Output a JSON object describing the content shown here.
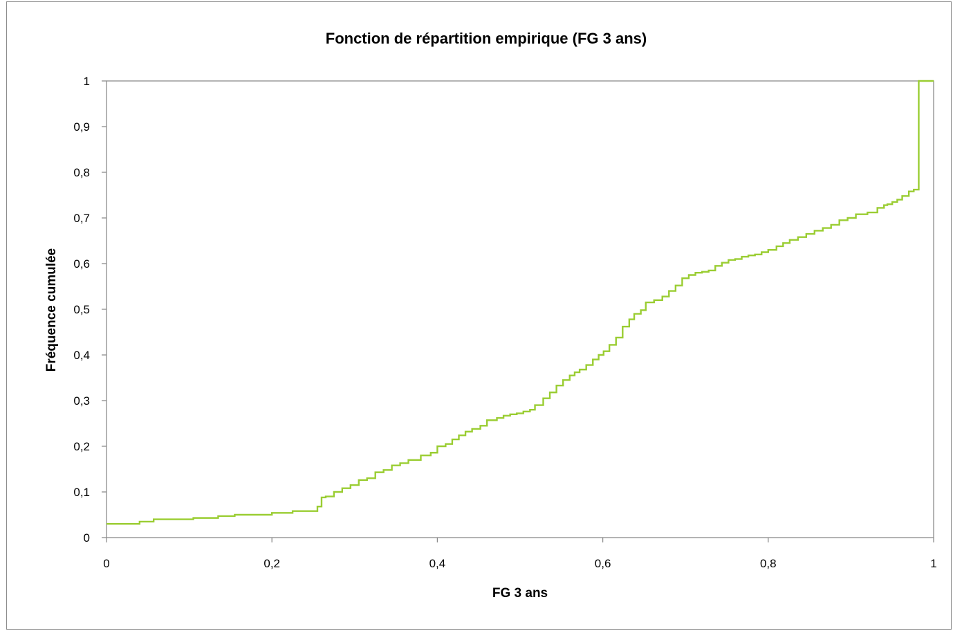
{
  "chart_data": {
    "type": "line",
    "step": true,
    "title": "Fonction de répartition empirique (FG 3 ans)",
    "xlabel": "FG 3 ans",
    "ylabel": "Fréquence cumulée",
    "xlim": [
      0,
      1
    ],
    "ylim": [
      0,
      1
    ],
    "x_ticks": [
      "0",
      "0,2",
      "0,4",
      "0,6",
      "0,8",
      "1"
    ],
    "x_tick_values": [
      0,
      0.2,
      0.4,
      0.6,
      0.8,
      1
    ],
    "y_ticks": [
      "0",
      "0,1",
      "0,2",
      "0,3",
      "0,4",
      "0,5",
      "0,6",
      "0,7",
      "0,8",
      "0,9",
      "1"
    ],
    "y_tick_values": [
      0,
      0.1,
      0.2,
      0.3,
      0.4,
      0.5,
      0.6,
      0.7,
      0.8,
      0.9,
      1
    ],
    "grid": false,
    "legend": "none",
    "line_color": "#9acd32",
    "series": [
      {
        "x": [
          0,
          0.04,
          0.057,
          0.105,
          0.135,
          0.155,
          0.2,
          0.225,
          0.255,
          0.26,
          0.265,
          0.275,
          0.285,
          0.295,
          0.305,
          0.315,
          0.325,
          0.335,
          0.345,
          0.355,
          0.365,
          0.38,
          0.392,
          0.4,
          0.41,
          0.418,
          0.426,
          0.434,
          0.442,
          0.452,
          0.46,
          0.472,
          0.48,
          0.488,
          0.496,
          0.504,
          0.512,
          0.518,
          0.528,
          0.536,
          0.544,
          0.552,
          0.56,
          0.566,
          0.572,
          0.58,
          0.588,
          0.595,
          0.601,
          0.608,
          0.616,
          0.624,
          0.632,
          0.638,
          0.646,
          0.652,
          0.662,
          0.672,
          0.68,
          0.688,
          0.696,
          0.704,
          0.712,
          0.72,
          0.728,
          0.736,
          0.744,
          0.752,
          0.76,
          0.768,
          0.776,
          0.784,
          0.792,
          0.8,
          0.81,
          0.818,
          0.826,
          0.836,
          0.846,
          0.856,
          0.866,
          0.876,
          0.886,
          0.896,
          0.906,
          0.92,
          0.932,
          0.94,
          0.944,
          0.95,
          0.956,
          0.962,
          0.97,
          0.976,
          0.982,
          0.992,
          1.0
        ],
        "y": [
          0.03,
          0.035,
          0.04,
          0.043,
          0.047,
          0.05,
          0.054,
          0.058,
          0.068,
          0.088,
          0.09,
          0.1,
          0.108,
          0.115,
          0.126,
          0.13,
          0.143,
          0.148,
          0.158,
          0.163,
          0.17,
          0.18,
          0.186,
          0.2,
          0.205,
          0.215,
          0.224,
          0.232,
          0.238,
          0.245,
          0.257,
          0.262,
          0.267,
          0.27,
          0.272,
          0.276,
          0.28,
          0.29,
          0.305,
          0.318,
          0.333,
          0.345,
          0.355,
          0.362,
          0.368,
          0.378,
          0.39,
          0.4,
          0.408,
          0.422,
          0.438,
          0.462,
          0.478,
          0.49,
          0.498,
          0.515,
          0.52,
          0.528,
          0.54,
          0.552,
          0.568,
          0.575,
          0.58,
          0.582,
          0.585,
          0.595,
          0.602,
          0.608,
          0.61,
          0.615,
          0.618,
          0.62,
          0.625,
          0.63,
          0.638,
          0.645,
          0.652,
          0.658,
          0.665,
          0.672,
          0.678,
          0.685,
          0.695,
          0.7,
          0.708,
          0.712,
          0.722,
          0.728,
          0.73,
          0.735,
          0.74,
          0.748,
          0.758,
          0.762,
          1.0,
          1.0,
          1.0
        ]
      }
    ]
  }
}
